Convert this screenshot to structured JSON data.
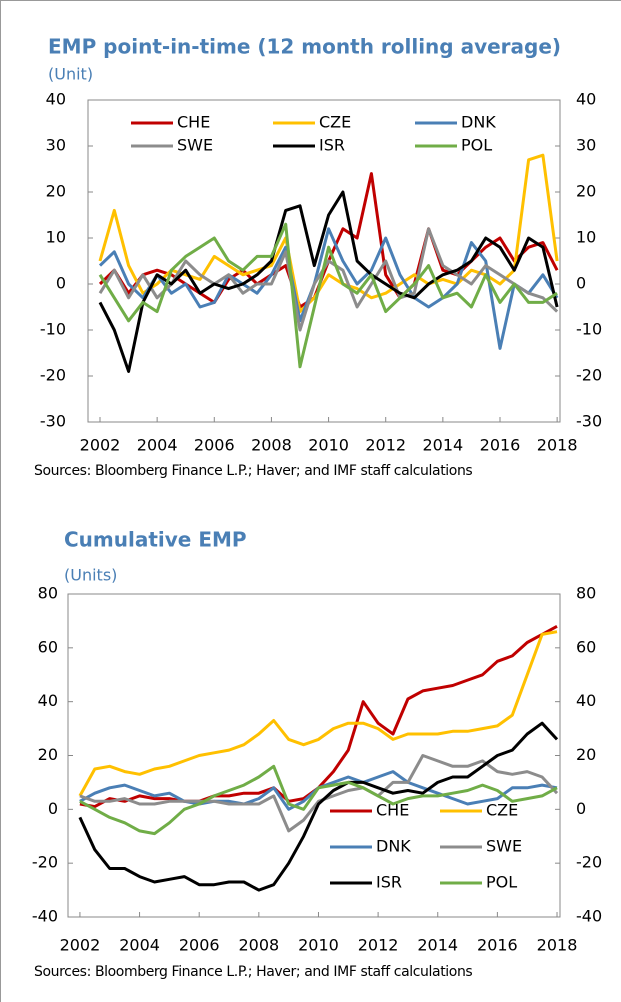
{
  "chart_data": [
    {
      "type": "line",
      "title": "EMP point-in-time (12 month rolling average)",
      "subtitle": "(Unit)",
      "source": "Sources: Bloomberg Finance L.P.; Haver; and IMF staff calculations",
      "x": [
        2002,
        2002.5,
        2003,
        2003.5,
        2004,
        2004.5,
        2005,
        2005.5,
        2006,
        2006.5,
        2007,
        2007.5,
        2008,
        2008.5,
        2009,
        2009.5,
        2010,
        2010.5,
        2011,
        2011.5,
        2012,
        2012.5,
        2013,
        2013.5,
        2014,
        2014.5,
        2015,
        2015.5,
        2016,
        2016.5,
        2017,
        2017.5,
        2018
      ],
      "xlim": [
        2001.58,
        2018.1
      ],
      "xticks": [
        2002,
        2004,
        2006,
        2008,
        2010,
        2012,
        2014,
        2016,
        2018
      ],
      "ylim": [
        -30,
        40
      ],
      "yticks": [
        -30,
        -20,
        -10,
        0,
        10,
        20,
        30,
        40
      ],
      "y2lim": [
        -30,
        40
      ],
      "y2ticks": [
        -30,
        -20,
        -10,
        0,
        10,
        20,
        30,
        40
      ],
      "legend": "upper center",
      "series": [
        {
          "name": "CHE",
          "color": "#c00000",
          "values": [
            0,
            3,
            -2,
            2,
            3,
            2,
            0,
            -2,
            -4,
            1,
            3,
            0,
            2,
            4,
            -5,
            -3,
            5,
            12,
            10,
            24,
            2,
            -3,
            0,
            12,
            3,
            2,
            5,
            8,
            10,
            5,
            8,
            9,
            3
          ]
        },
        {
          "name": "CZE",
          "color": "#ffc000",
          "values": [
            5,
            16,
            4,
            -2,
            0,
            3,
            2,
            1,
            6,
            4,
            2,
            3,
            4,
            10,
            -6,
            -3,
            2,
            0,
            -1,
            -3,
            -2,
            0,
            2,
            0,
            1,
            0,
            3,
            2,
            0,
            3,
            27,
            28,
            5
          ]
        },
        {
          "name": "DNK",
          "color": "#4a7fb5",
          "values": [
            4,
            7,
            0,
            -3,
            2,
            -2,
            0,
            -5,
            -4,
            2,
            0,
            -2,
            2,
            8,
            -8,
            0,
            12,
            5,
            0,
            3,
            10,
            2,
            -3,
            -5,
            -3,
            0,
            9,
            5,
            -14,
            0,
            -2,
            2,
            -3
          ]
        },
        {
          "name": "SWE",
          "color": "#8c8c8c",
          "values": [
            -2,
            3,
            -3,
            2,
            -3,
            0,
            5,
            2,
            0,
            2,
            -2,
            0,
            0,
            7,
            -10,
            0,
            5,
            3,
            -5,
            0,
            5,
            -3,
            -2,
            12,
            4,
            2,
            0,
            4,
            2,
            0,
            -2,
            -3,
            -6
          ]
        },
        {
          "name": "ISR",
          "color": "#000000",
          "values": [
            -4,
            -10,
            -19,
            -4,
            2,
            0,
            3,
            -2,
            0,
            -1,
            0,
            2,
            5,
            16,
            17,
            4,
            15,
            20,
            5,
            2,
            0,
            -2,
            -3,
            0,
            2,
            3,
            5,
            10,
            8,
            3,
            10,
            8,
            -5
          ]
        },
        {
          "name": "POL",
          "color": "#70ad47",
          "values": [
            2,
            -3,
            -8,
            -4,
            -6,
            3,
            6,
            8,
            10,
            5,
            3,
            6,
            6,
            13,
            -18,
            -5,
            8,
            0,
            -2,
            2,
            -6,
            -3,
            0,
            4,
            -3,
            -2,
            -5,
            2,
            -4,
            0,
            -4,
            -4,
            -2
          ]
        }
      ]
    },
    {
      "type": "line",
      "title": "Cumulative EMP",
      "subtitle": "(Units)",
      "source": "Sources: Bloomberg Finance L.P.; Haver; and IMF staff calculations",
      "x": [
        2002,
        2002.5,
        2003,
        2003.5,
        2004,
        2004.5,
        2005,
        2005.5,
        2006,
        2006.5,
        2007,
        2007.5,
        2008,
        2008.5,
        2009,
        2009.5,
        2010,
        2010.5,
        2011,
        2011.5,
        2012,
        2012.5,
        2013,
        2013.5,
        2014,
        2014.5,
        2015,
        2015.5,
        2016,
        2016.5,
        2017,
        2017.5,
        2018
      ],
      "xlim": [
        2001.6,
        2018.1
      ],
      "xticks": [
        2002,
        2004,
        2006,
        2008,
        2010,
        2012,
        2014,
        2016,
        2018
      ],
      "ylim": [
        -40,
        80
      ],
      "yticks": [
        -40,
        -20,
        0,
        20,
        40,
        60,
        80
      ],
      "y2lim": [
        -40,
        80
      ],
      "y2ticks": [
        -40,
        -20,
        0,
        20,
        40,
        60,
        80
      ],
      "legend": "lower right",
      "series": [
        {
          "name": "CHE",
          "color": "#c00000",
          "values": [
            2,
            1,
            4,
            3,
            5,
            4,
            4,
            3,
            3,
            5,
            5,
            6,
            6,
            8,
            3,
            4,
            8,
            14,
            22,
            40,
            32,
            28,
            41,
            44,
            45,
            46,
            48,
            50,
            55,
            57,
            62,
            65,
            68
          ]
        },
        {
          "name": "CZE",
          "color": "#ffc000",
          "values": [
            5,
            15,
            16,
            14,
            13,
            15,
            16,
            18,
            20,
            21,
            22,
            24,
            28,
            33,
            26,
            24,
            26,
            30,
            32,
            32,
            30,
            26,
            28,
            28,
            28,
            29,
            29,
            30,
            31,
            35,
            50,
            65,
            66
          ]
        },
        {
          "name": "DNK",
          "color": "#4a7fb5",
          "values": [
            3,
            6,
            8,
            9,
            7,
            5,
            6,
            3,
            2,
            3,
            3,
            2,
            4,
            8,
            0,
            3,
            8,
            10,
            12,
            10,
            12,
            14,
            10,
            8,
            6,
            4,
            2,
            3,
            4,
            8,
            8,
            9,
            8
          ]
        },
        {
          "name": "SWE",
          "color": "#8c8c8c",
          "values": [
            5,
            3,
            3,
            4,
            2,
            2,
            3,
            3,
            3,
            3,
            2,
            2,
            2,
            5,
            -8,
            -4,
            3,
            5,
            7,
            8,
            5,
            10,
            10,
            20,
            18,
            16,
            16,
            18,
            14,
            13,
            14,
            12,
            6
          ]
        },
        {
          "name": "ISR",
          "color": "#000000",
          "values": [
            -3,
            -15,
            -22,
            -22,
            -25,
            -27,
            -26,
            -25,
            -28,
            -28,
            -27,
            -27,
            -30,
            -28,
            -20,
            -10,
            2,
            7,
            10,
            10,
            8,
            6,
            7,
            6,
            10,
            12,
            12,
            16,
            20,
            22,
            28,
            32,
            26
          ]
        },
        {
          "name": "POL",
          "color": "#70ad47",
          "values": [
            3,
            0,
            -3,
            -5,
            -8,
            -9,
            -5,
            0,
            2,
            5,
            7,
            9,
            12,
            16,
            2,
            0,
            8,
            9,
            10,
            8,
            5,
            2,
            4,
            5,
            5,
            6,
            7,
            9,
            7,
            3,
            4,
            5,
            8
          ]
        }
      ]
    }
  ]
}
